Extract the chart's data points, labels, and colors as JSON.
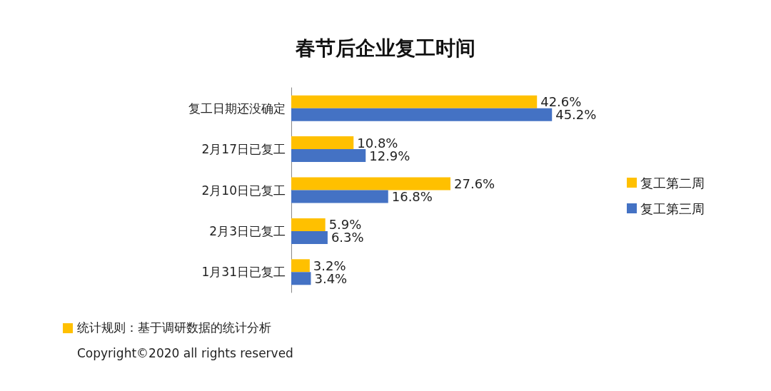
{
  "chart_data": {
    "type": "bar",
    "orientation": "horizontal",
    "title": "春节后企业复工时间",
    "categories": [
      "复工日期还没确定",
      "2月17日已复工",
      "2月10日已复工",
      "2月3日已复工",
      "1月31日已复工"
    ],
    "series": [
      {
        "name": "复工第二周",
        "color": "#ffc000",
        "values": [
          42.6,
          10.8,
          27.6,
          5.9,
          3.2
        ],
        "value_labels": [
          "42.6%",
          "10.8%",
          "27.6%",
          "5.9%",
          "3.2%"
        ]
      },
      {
        "name": "复工第三周",
        "color": "#4472c4",
        "values": [
          45.2,
          12.9,
          16.8,
          6.3,
          3.4
        ],
        "value_labels": [
          "45.2%",
          "12.9%",
          "16.8%",
          "6.3%",
          "3.4%"
        ]
      }
    ],
    "legend": "right",
    "grid": false,
    "annotations": [
      "统计规则：基于调研数据的统计分析",
      "Copyright©2020 all rights reserved"
    ]
  }
}
